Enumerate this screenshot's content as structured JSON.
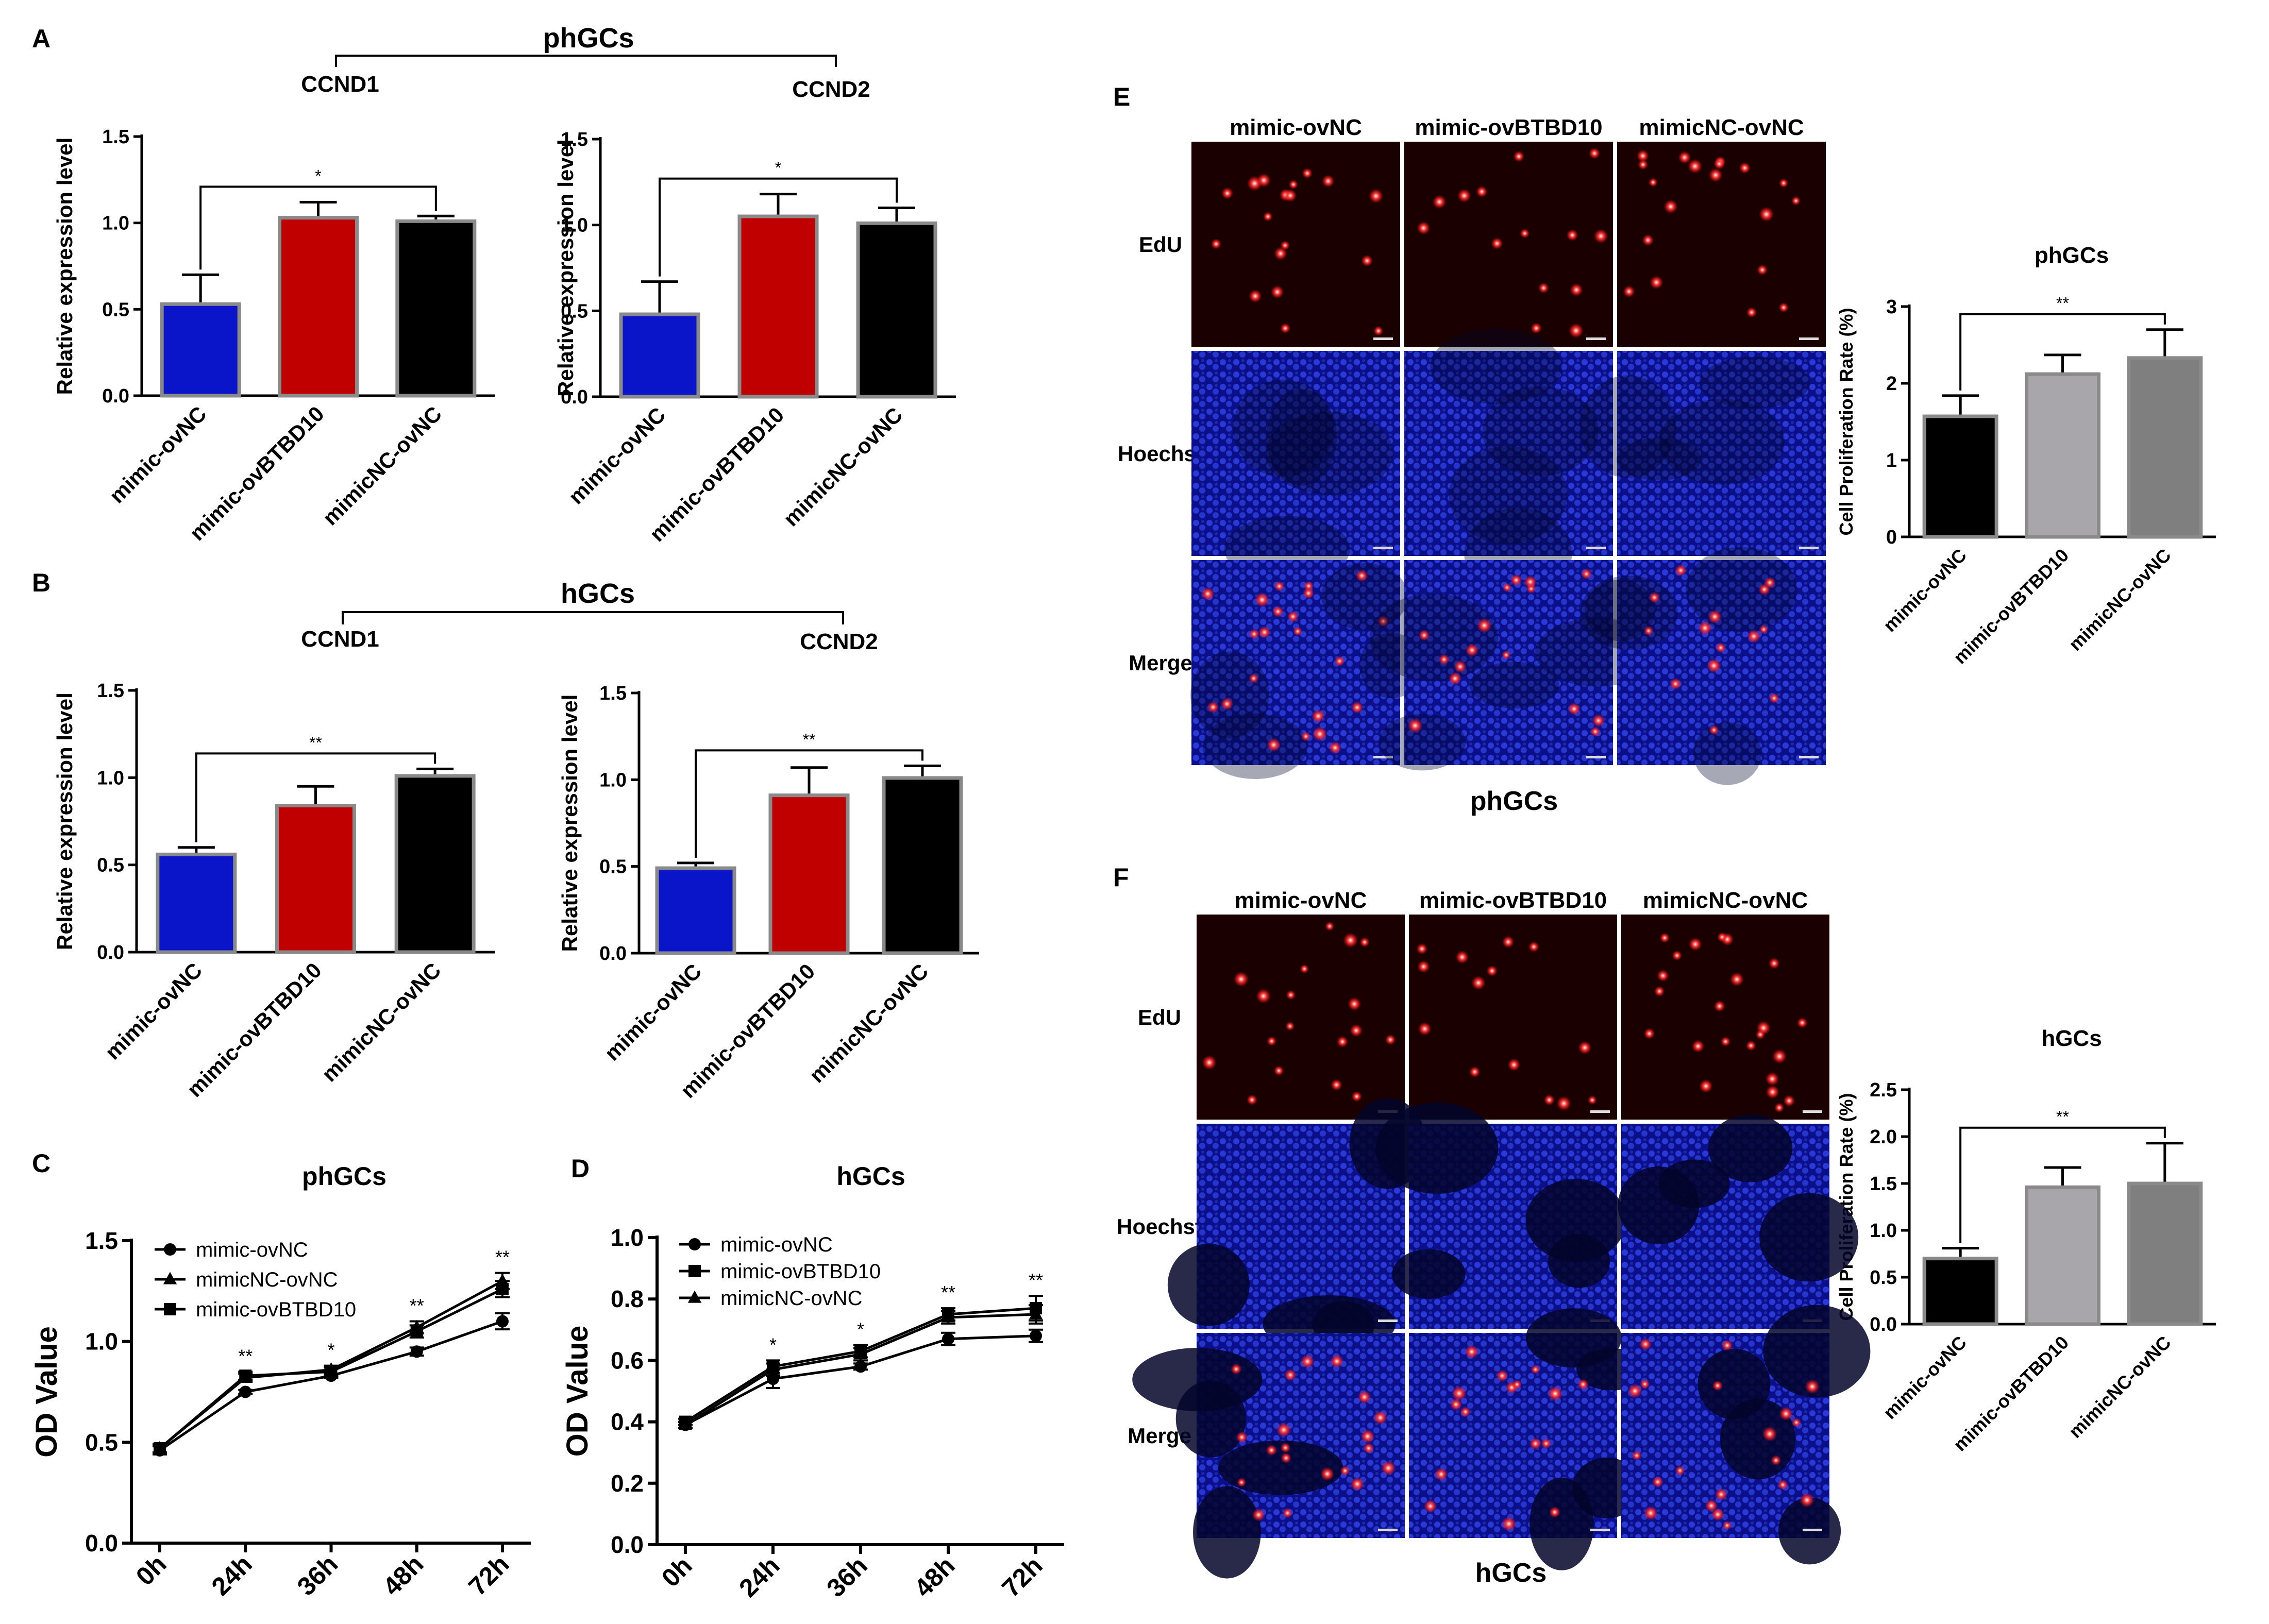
{
  "panel_letters": {
    "A": "A",
    "B": "B",
    "C": "C",
    "D": "D",
    "E": "E",
    "F": "F"
  },
  "group_titles": {
    "A": "phGCs",
    "B": "hGCs",
    "E_caption": "phGCs",
    "F_caption": "hGCs"
  },
  "colors": {
    "blue": "#0a14c8",
    "red": "#c00000",
    "black": "#000000",
    "bar_edge": "#8a8a8a",
    "gray_light": "#a8a6aa",
    "gray_mid": "#7f7f7f",
    "edu_bg": "#1a0000",
    "hoechst_bg": "#0a0f6e"
  },
  "microscopy": {
    "E": {
      "columns": [
        "mimic-ovNC",
        "mimic-ovBTBD10",
        "mimicNC-ovNC"
      ],
      "rows": [
        "EdU",
        "Hoechst",
        "Merge"
      ]
    },
    "F": {
      "columns": [
        "mimic-ovNC",
        "mimic-ovBTBD10",
        "mimicNC-ovNC"
      ],
      "rows": [
        "EdU",
        "Hoechst",
        "Merge"
      ]
    }
  },
  "chart_data": [
    {
      "id": "A1",
      "type": "bar",
      "title": "CCND1",
      "ylabel": "Relative expression level",
      "xlabel": "",
      "categories": [
        "mimic-ovNC",
        "mimic-ovBTBD10",
        "mimicNC-ovNC"
      ],
      "values": [
        0.53,
        1.03,
        1.01
      ],
      "errors": [
        0.17,
        0.09,
        0.03
      ],
      "colors": [
        "#0a14c8",
        "#c00000",
        "#000000"
      ],
      "ylim": [
        0,
        1.5
      ],
      "yticks": [
        "0.0",
        "0.5",
        "1.0",
        "1.5"
      ],
      "significance": {
        "from": 0,
        "to": 2,
        "label": "*"
      }
    },
    {
      "id": "A2",
      "type": "bar",
      "title": "CCND2",
      "ylabel": "Relative expression level",
      "xlabel": "",
      "categories": [
        "mimic-ovNC",
        "mimic-ovBTBD10",
        "mimicNC-ovNC"
      ],
      "values": [
        0.48,
        1.05,
        1.01
      ],
      "errors": [
        0.19,
        0.13,
        0.09
      ],
      "colors": [
        "#0a14c8",
        "#c00000",
        "#000000"
      ],
      "ylim": [
        0,
        1.5
      ],
      "yticks": [
        "0.0",
        "0.5",
        "1.0",
        "1.5"
      ],
      "significance": {
        "from": 0,
        "to": 2,
        "label": "*"
      }
    },
    {
      "id": "B1",
      "type": "bar",
      "title": "CCND1",
      "ylabel": "Relative expression level",
      "xlabel": "",
      "categories": [
        "mimic-ovNC",
        "mimic-ovBTBD10",
        "mimicNC-ovNC"
      ],
      "values": [
        0.56,
        0.84,
        1.01
      ],
      "errors": [
        0.04,
        0.11,
        0.04
      ],
      "colors": [
        "#0a14c8",
        "#c00000",
        "#000000"
      ],
      "ylim": [
        0,
        1.5
      ],
      "yticks": [
        "0.0",
        "0.5",
        "1.0",
        "1.5"
      ],
      "significance": {
        "from": 0,
        "to": 2,
        "label": "**"
      }
    },
    {
      "id": "B2",
      "type": "bar",
      "title": "CCND2",
      "ylabel": "Relative expression level",
      "xlabel": "",
      "categories": [
        "mimic-ovNC",
        "mimic-ovBTBD10",
        "mimicNC-ovNC"
      ],
      "values": [
        0.49,
        0.91,
        1.01
      ],
      "errors": [
        0.03,
        0.16,
        0.07
      ],
      "colors": [
        "#0a14c8",
        "#c00000",
        "#000000"
      ],
      "ylim": [
        0,
        1.5
      ],
      "yticks": [
        "0.0",
        "0.5",
        "1.0",
        "1.5"
      ],
      "significance": {
        "from": 0,
        "to": 2,
        "label": "**"
      }
    },
    {
      "id": "C",
      "type": "line",
      "title": "phGCs",
      "ylabel": "OD Value",
      "xlabel": "",
      "x": [
        "0h",
        "24h",
        "36h",
        "48h",
        "72h"
      ],
      "ylim": [
        0,
        1.5
      ],
      "yticks": [
        "0.0",
        "0.5",
        "1.0",
        "1.5"
      ],
      "series": [
        {
          "name": "mimic-ovNC",
          "marker": "circle",
          "values": [
            0.46,
            0.75,
            0.83,
            0.95,
            1.1
          ],
          "errors": [
            0.02,
            0.01,
            0.01,
            0.02,
            0.04
          ]
        },
        {
          "name": "mimicNC-ovNC",
          "marker": "triangle",
          "values": [
            0.47,
            0.82,
            0.86,
            1.07,
            1.3
          ],
          "errors": [
            0.02,
            0.02,
            0.02,
            0.03,
            0.04
          ]
        },
        {
          "name": "mimic-ovBTBD10",
          "marker": "square",
          "values": [
            0.47,
            0.83,
            0.85,
            1.05,
            1.26
          ],
          "errors": [
            0.02,
            0.02,
            0.02,
            0.03,
            0.04
          ]
        }
      ],
      "annotations": [
        "",
        "**",
        "*",
        "**",
        "**"
      ],
      "legend": "top-left"
    },
    {
      "id": "D",
      "type": "line",
      "title": "hGCs",
      "ylabel": "OD Value",
      "xlabel": "",
      "x": [
        "0h",
        "24h",
        "36h",
        "48h",
        "72h"
      ],
      "ylim": [
        0,
        1.0
      ],
      "yticks": [
        "0.0",
        "0.2",
        "0.4",
        "0.6",
        "0.8",
        "1.0"
      ],
      "series": [
        {
          "name": "mimic-ovNC",
          "marker": "circle",
          "values": [
            0.39,
            0.54,
            0.58,
            0.67,
            0.68
          ],
          "errors": [
            0.01,
            0.03,
            0.01,
            0.02,
            0.02
          ]
        },
        {
          "name": "mimic-ovBTBD10",
          "marker": "square",
          "values": [
            0.4,
            0.58,
            0.63,
            0.75,
            0.77
          ],
          "errors": [
            0.01,
            0.02,
            0.02,
            0.02,
            0.04
          ]
        },
        {
          "name": "mimicNC-ovNC",
          "marker": "triangle",
          "values": [
            0.39,
            0.57,
            0.62,
            0.74,
            0.75
          ],
          "errors": [
            0.01,
            0.02,
            0.02,
            0.02,
            0.03
          ]
        }
      ],
      "annotations": [
        "",
        "*",
        "*",
        "**",
        "**"
      ],
      "legend": "top-left"
    },
    {
      "id": "E",
      "type": "bar",
      "title": "phGCs",
      "ylabel": "Cell Proliferation Rate (%)",
      "xlabel": "",
      "categories": [
        "mimic-ovNC",
        "mimic-ovBTBD10",
        "mimicNC-ovNC"
      ],
      "values": [
        1.57,
        2.12,
        2.33
      ],
      "errors": [
        0.27,
        0.25,
        0.37
      ],
      "colors": [
        "#000000",
        "#a8a6aa",
        "#7f7f7f"
      ],
      "ylim": [
        0,
        3
      ],
      "yticks": [
        "0",
        "1",
        "2",
        "3"
      ],
      "significance": {
        "from": 0,
        "to": 2,
        "label": "**"
      }
    },
    {
      "id": "F",
      "type": "bar",
      "title": "hGCs",
      "ylabel": "Cell Proliferation Rate (%)",
      "xlabel": "",
      "categories": [
        "mimic-ovNC",
        "mimic-ovBTBD10",
        "mimicNC-ovNC"
      ],
      "values": [
        0.7,
        1.46,
        1.5
      ],
      "errors": [
        0.11,
        0.21,
        0.43
      ],
      "colors": [
        "#000000",
        "#a8a6aa",
        "#7f7f7f"
      ],
      "ylim": [
        0,
        2.5
      ],
      "yticks": [
        "0.0",
        "0.5",
        "1.0",
        "1.5",
        "2.0",
        "2.5"
      ],
      "significance": {
        "from": 0,
        "to": 2,
        "label": "**"
      }
    }
  ]
}
